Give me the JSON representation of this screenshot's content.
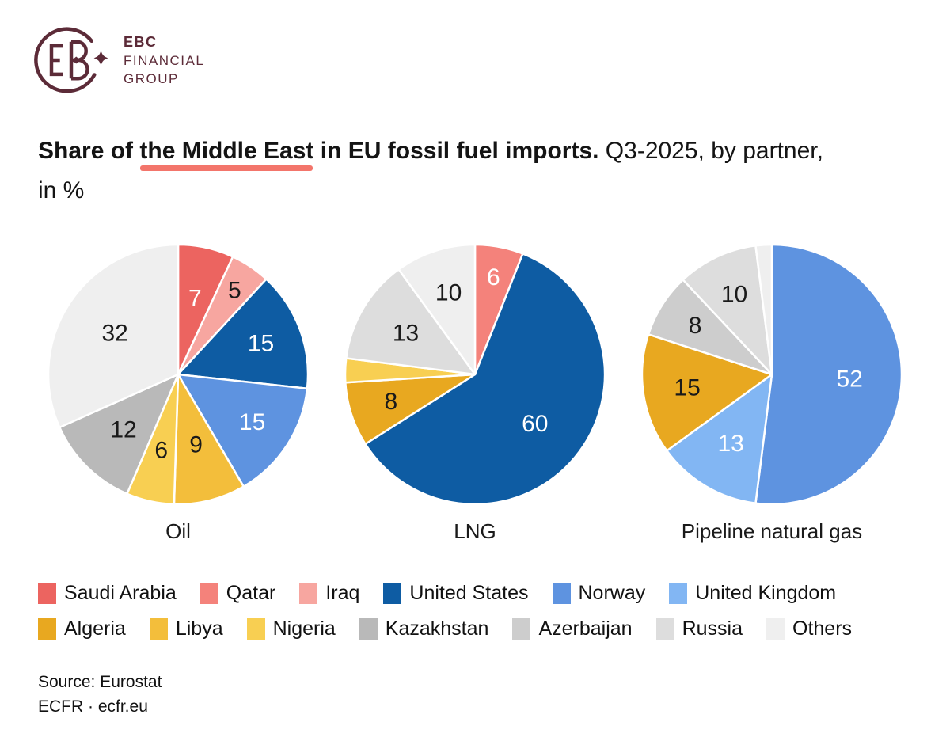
{
  "logo": {
    "name_line1": "EBC",
    "name_line2": "FINANCIAL",
    "name_line3": "GROUP"
  },
  "title": {
    "bold_prefix": "Share of ",
    "highlight": "the Middle East",
    "bold_suffix": " in EU fossil fuel imports.",
    "regular_suffix": " Q3-2025, by partner,",
    "line2": "in %"
  },
  "colors": {
    "brand": "#5C2B38",
    "underline_accent": "#F3756B",
    "Saudi Arabia": "#EC6460",
    "Qatar": "#F4827B",
    "Iraq": "#F7A6A0",
    "United States": "#0E5CA3",
    "Norway": "#5E93E0",
    "United Kingdom": "#82B6F3",
    "Algeria": "#E8A820",
    "Libya": "#F3BE3B",
    "Nigeria": "#F8CF52",
    "Kazakhstan": "#B9B9B9",
    "Azerbaijan": "#CDCDCD",
    "Russia": "#DDDDDD",
    "Others": "#EFEFEF"
  },
  "chart_data": [
    {
      "type": "pie",
      "title": "Oil",
      "unit": "%",
      "start_angle_deg": 0,
      "direction": "clockwise",
      "slices": [
        {
          "partner": "Saudi Arabia",
          "value": 7,
          "label": "7",
          "label_color": "#ffffff",
          "label_r": 0.6
        },
        {
          "partner": "Iraq",
          "value": 5,
          "label": "5",
          "label_color": "#1a1a1a",
          "label_r": 0.78
        },
        {
          "partner": "United States",
          "value": 15,
          "label": "15",
          "label_color": "#ffffff",
          "label_r": 0.68
        },
        {
          "partner": "Norway",
          "value": 15,
          "label": "15",
          "label_color": "#ffffff",
          "label_r": 0.68
        },
        {
          "partner": "Libya",
          "value": 9,
          "label": "9",
          "label_color": "#1a1a1a",
          "label_r": 0.56
        },
        {
          "partner": "Nigeria",
          "value": 6,
          "label": "6",
          "label_color": "#1a1a1a",
          "label_r": 0.6
        },
        {
          "partner": "Kazakhstan",
          "value": 12,
          "label": "12",
          "label_color": "#1a1a1a",
          "label_r": 0.6
        },
        {
          "partner": "Others",
          "value": 32,
          "label": "32",
          "label_color": "#1a1a1a",
          "label_r": 0.58
        }
      ]
    },
    {
      "type": "pie",
      "title": "LNG",
      "unit": "%",
      "start_angle_deg": 0,
      "direction": "clockwise",
      "slices": [
        {
          "partner": "Qatar",
          "value": 6,
          "label": "6",
          "label_color": "#ffffff",
          "label_r": 0.76
        },
        {
          "partner": "United States",
          "value": 60,
          "label": "60",
          "label_color": "#ffffff",
          "label_r": 0.6
        },
        {
          "partner": "Algeria",
          "value": 8,
          "label": "8",
          "label_color": "#1a1a1a",
          "label_r": 0.68
        },
        {
          "partner": "Nigeria",
          "value": 3,
          "label": ""
        },
        {
          "partner": "Russia",
          "value": 13,
          "label": "13",
          "label_color": "#1a1a1a",
          "label_r": 0.62
        },
        {
          "partner": "Others",
          "value": 10,
          "label": "10",
          "label_color": "#1a1a1a",
          "label_r": 0.66
        }
      ]
    },
    {
      "type": "pie",
      "title": "Pipeline natural gas",
      "unit": "%",
      "start_angle_deg": 0,
      "direction": "clockwise",
      "slices": [
        {
          "partner": "Norway",
          "value": 52,
          "label": "52",
          "label_color": "#ffffff",
          "label_r": 0.6
        },
        {
          "partner": "United Kingdom",
          "value": 13,
          "label": "13",
          "label_color": "#ffffff",
          "label_r": 0.62
        },
        {
          "partner": "Algeria",
          "value": 15,
          "label": "15",
          "label_color": "#1a1a1a",
          "label_r": 0.66
        },
        {
          "partner": "Azerbaijan",
          "value": 8,
          "label": "8",
          "label_color": "#1a1a1a",
          "label_r": 0.7
        },
        {
          "partner": "Russia",
          "value": 10,
          "label": "10",
          "label_color": "#1a1a1a",
          "label_r": 0.68
        },
        {
          "partner": "Others",
          "value": 2,
          "label": ""
        }
      ]
    }
  ],
  "legend": {
    "rows": [
      [
        "Saudi Arabia",
        "Qatar",
        "Iraq",
        "United States",
        "Norway",
        "United Kingdom"
      ],
      [
        "Algeria",
        "Libya",
        "Nigeria",
        "Kazakhstan",
        "Azerbaijan",
        "Russia",
        "Others"
      ]
    ]
  },
  "footer": {
    "source": "Source: Eurostat",
    "credit": "ECFR · ecfr.eu"
  }
}
